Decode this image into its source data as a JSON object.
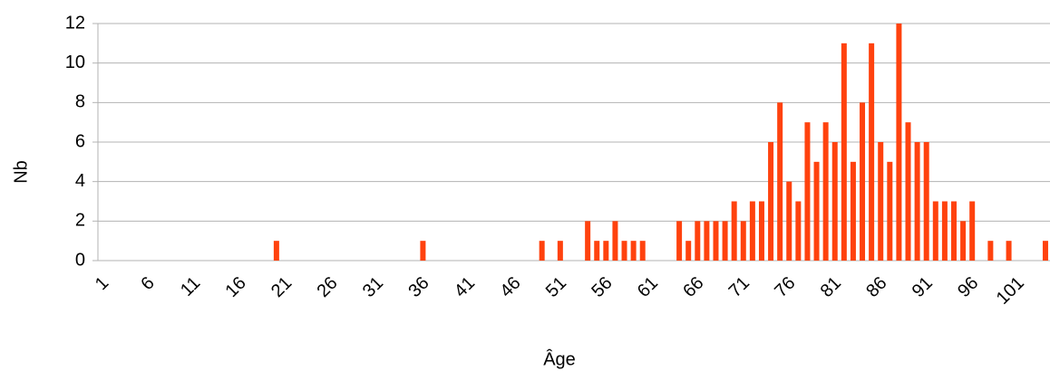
{
  "chart_data": {
    "type": "bar",
    "x_label": "Âge",
    "y_label": "Nb",
    "categories": [
      1,
      null,
      null,
      null,
      null,
      6,
      null,
      null,
      null,
      null,
      11,
      null,
      null,
      null,
      null,
      16,
      null,
      null,
      null,
      null,
      21,
      null,
      null,
      null,
      null,
      26,
      null,
      null,
      null,
      null,
      31,
      null,
      null,
      null,
      null,
      36,
      null,
      null,
      null,
      null,
      41,
      null,
      null,
      null,
      null,
      46,
      null,
      null,
      null,
      null,
      51,
      null,
      null,
      null,
      null,
      56,
      null,
      null,
      null,
      null,
      61,
      null,
      null,
      null,
      null,
      66,
      null,
      null,
      null,
      null,
      71,
      null,
      null,
      null,
      null,
      76,
      null,
      null,
      null,
      null,
      81,
      null,
      null,
      null,
      null,
      86,
      null,
      null,
      null,
      null,
      91,
      null,
      null,
      null,
      null,
      96,
      null,
      null,
      null,
      null,
      101,
      null,
      null,
      null
    ],
    "values": [
      0,
      0,
      0,
      0,
      0,
      0,
      0,
      0,
      0,
      0,
      0,
      0,
      0,
      0,
      0,
      0,
      0,
      0,
      0,
      1,
      0,
      0,
      0,
      0,
      0,
      0,
      0,
      0,
      0,
      0,
      0,
      0,
      0,
      0,
      0,
      1,
      0,
      0,
      0,
      0,
      0,
      0,
      0,
      0,
      0,
      0,
      0,
      0,
      1,
      0,
      1,
      0,
      0,
      2,
      1,
      1,
      2,
      1,
      1,
      1,
      0,
      0,
      0,
      2,
      1,
      2,
      2,
      2,
      2,
      3,
      2,
      3,
      3,
      6,
      8,
      4,
      3,
      7,
      5,
      7,
      6,
      11,
      5,
      8,
      11,
      6,
      5,
      12,
      7,
      6,
      6,
      3,
      3,
      3,
      2,
      3,
      0,
      1,
      0,
      1,
      0,
      0,
      0,
      1
    ],
    "color": "#ff420e",
    "ylim": [
      0,
      12
    ],
    "yticks": [
      0,
      2,
      4,
      6,
      8,
      10,
      12
    ],
    "grid": true
  }
}
